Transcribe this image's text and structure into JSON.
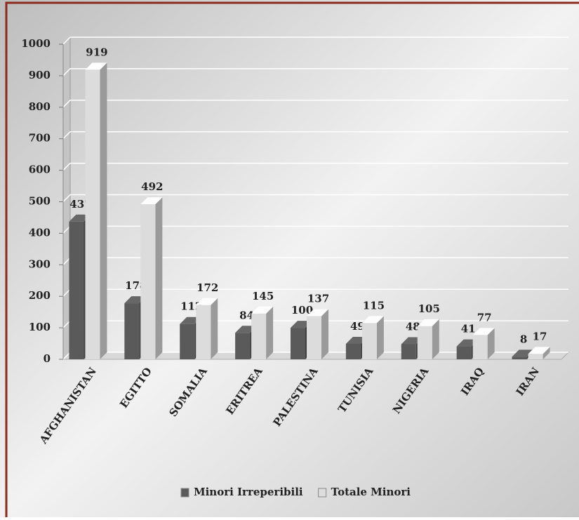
{
  "chart_data": {
    "type": "bar3d",
    "categories": [
      "AFGHANISTAN",
      "EGITTO",
      "SOMALIA",
      "ERITREA",
      "PALESTINA",
      "TUNISIA",
      "NIGERIA",
      "IRAQ",
      "IRAN"
    ],
    "series": [
      {
        "name": "Minori Irreperibili",
        "color": "#5a5a5a",
        "values": [
          437,
          178,
          112,
          84,
          100,
          49,
          48,
          41,
          8
        ]
      },
      {
        "name": "Totale Minori",
        "color": "#dcdcdc",
        "values": [
          919,
          492,
          172,
          145,
          137,
          115,
          105,
          77,
          17
        ]
      }
    ],
    "ylim": [
      0,
      1000
    ],
    "yticks": [
      0,
      100,
      200,
      300,
      400,
      500,
      600,
      700,
      800,
      900,
      1000
    ],
    "grid": true
  }
}
